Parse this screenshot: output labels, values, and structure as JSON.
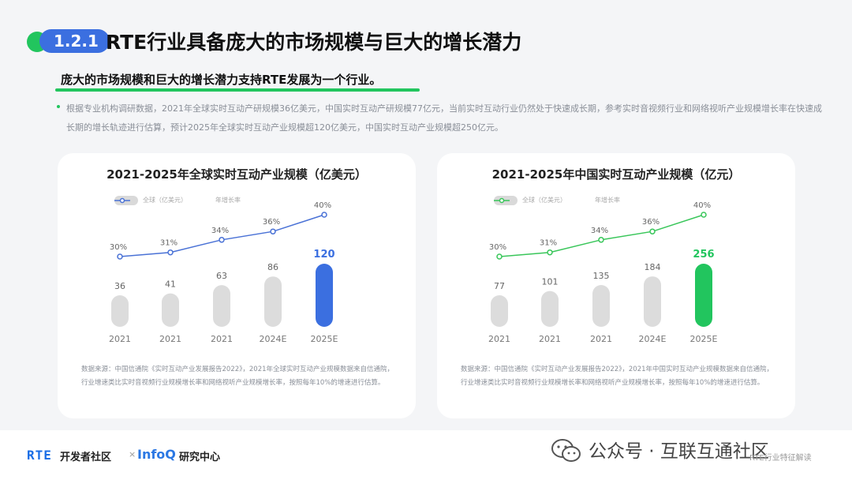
{
  "header": {
    "section_number": "1.2.1",
    "title": "RTE行业具备庞大的市场规模与巨大的增长潜力"
  },
  "subtitle": "庞大的市场规模和巨大的增长潜力支持RTE发展为一个行业。",
  "body_text": "根据专业机构调研数据，2021年全球实时互动产研规模36亿美元，中国实时互动产研规模77亿元，当前实时互动行业仍然处于快速成长期，参考实时音视频行业和网络视听产业规模增长率在快速成长期的增长轨迹进行估算，预计2025年全球实时互动产业规模超120亿美元，中国实时互动产业规模超250亿元。",
  "colors": {
    "accent_blue": "#3b6fe0",
    "accent_green": "#22c55e",
    "bar_gray": "#dcdcdc",
    "line_blue": "#4a72d6",
    "line_green": "#39c65a"
  },
  "chart_data": [
    {
      "type": "bar",
      "title": "2021-2025年全球实时互动产业规模（亿美元）",
      "categories": [
        "2021",
        "2021",
        "2021",
        "2024E",
        "2025E"
      ],
      "series": [
        {
          "name": "全球（亿美元）",
          "values": [
            36,
            41,
            63,
            86,
            120
          ],
          "value_labels": [
            "36",
            "41",
            "63",
            "86",
            "120"
          ]
        },
        {
          "name": "年增长率",
          "type": "line",
          "values": [
            30,
            31,
            34,
            36,
            40
          ],
          "value_labels": [
            "30%",
            "31%",
            "34%",
            "36%",
            "40%"
          ]
        }
      ],
      "highlight_index": 4,
      "source": "数据来源：中国信通院《实时互动产业发展报告2022》，2021年全球实时互动产业规模数据来自信通院，行业增速类比实时音视频行业规模增长率和网络视听产业规模增长率，按照每年10%的增速进行估算。"
    },
    {
      "type": "bar",
      "title": "2021-2025年中国实时互动产业规模（亿元）",
      "categories": [
        "2021",
        "2021",
        "2021",
        "2024E",
        "2025E"
      ],
      "series": [
        {
          "name": "全球（亿美元）",
          "values": [
            77,
            101,
            135,
            184,
            256
          ],
          "value_labels": [
            "77",
            "101",
            "135",
            "184",
            "256"
          ]
        },
        {
          "name": "年增长率",
          "type": "line",
          "values": [
            30,
            31,
            34,
            36,
            40
          ],
          "value_labels": [
            "30%",
            "31%",
            "34%",
            "36%",
            "40%"
          ]
        }
      ],
      "highlight_index": 4,
      "source": "数据来源：中国信通院《实时互动产业发展报告2022》，2021年中国实时互动产业规模数据来自信通院，行业增速类比实时音视频行业规模增长率和网络视听产业规模增长率，按照每年10%的增速进行估算。"
    }
  ],
  "footer": {
    "logo_rte": "RTE",
    "logo_rte_sub": "开发者社区",
    "separator": "×",
    "logo_infoq": "InfoQ",
    "logo_infoq_sub": "研究中心",
    "watermark": "公众号 · 互联互通社区",
    "tag": "RTE行业特征解读"
  }
}
